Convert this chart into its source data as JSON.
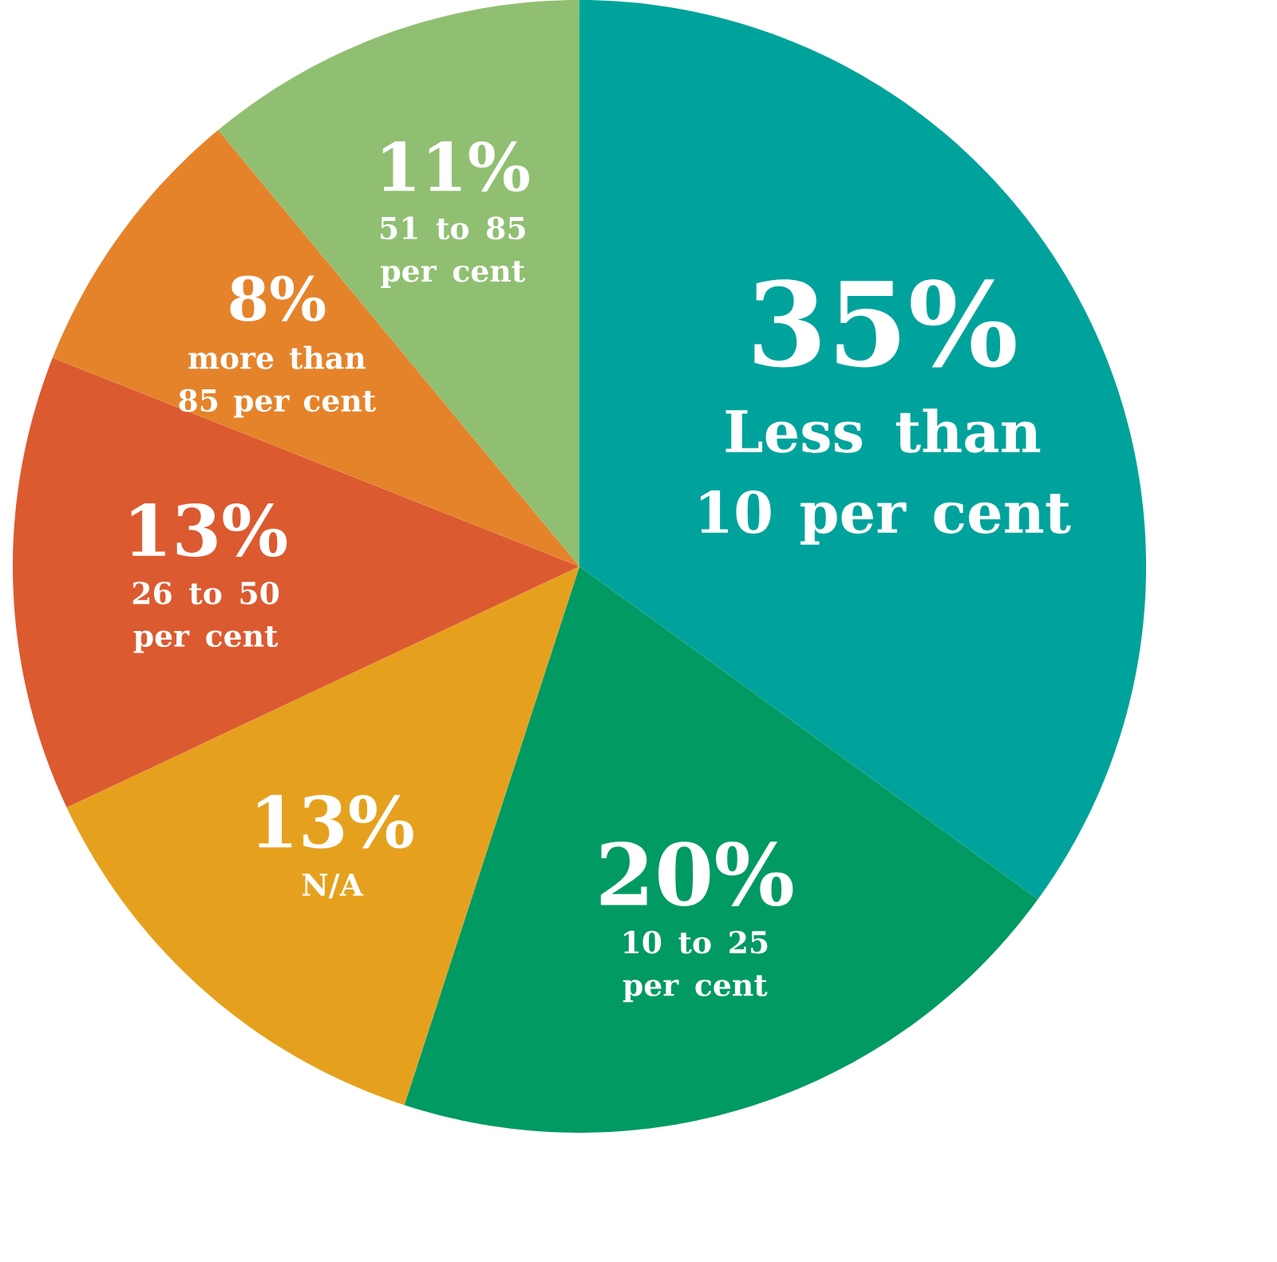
{
  "chart_data": {
    "type": "pie",
    "categories": [
      "Less than 10 per cent",
      "10 to 25 per cent",
      "N/A",
      "26 to 50 per cent",
      "more than 85 per cent",
      "51 to 85 per cent"
    ],
    "values": [
      35,
      20,
      13,
      13,
      8,
      11
    ],
    "value_labels": [
      "35%",
      "20%",
      "13%",
      "13%",
      "8%",
      "11%"
    ],
    "colors": [
      "#00a39c",
      "#009a62",
      "#e5a11e",
      "#dc5a30",
      "#e5832b",
      "#90bf72"
    ]
  }
}
